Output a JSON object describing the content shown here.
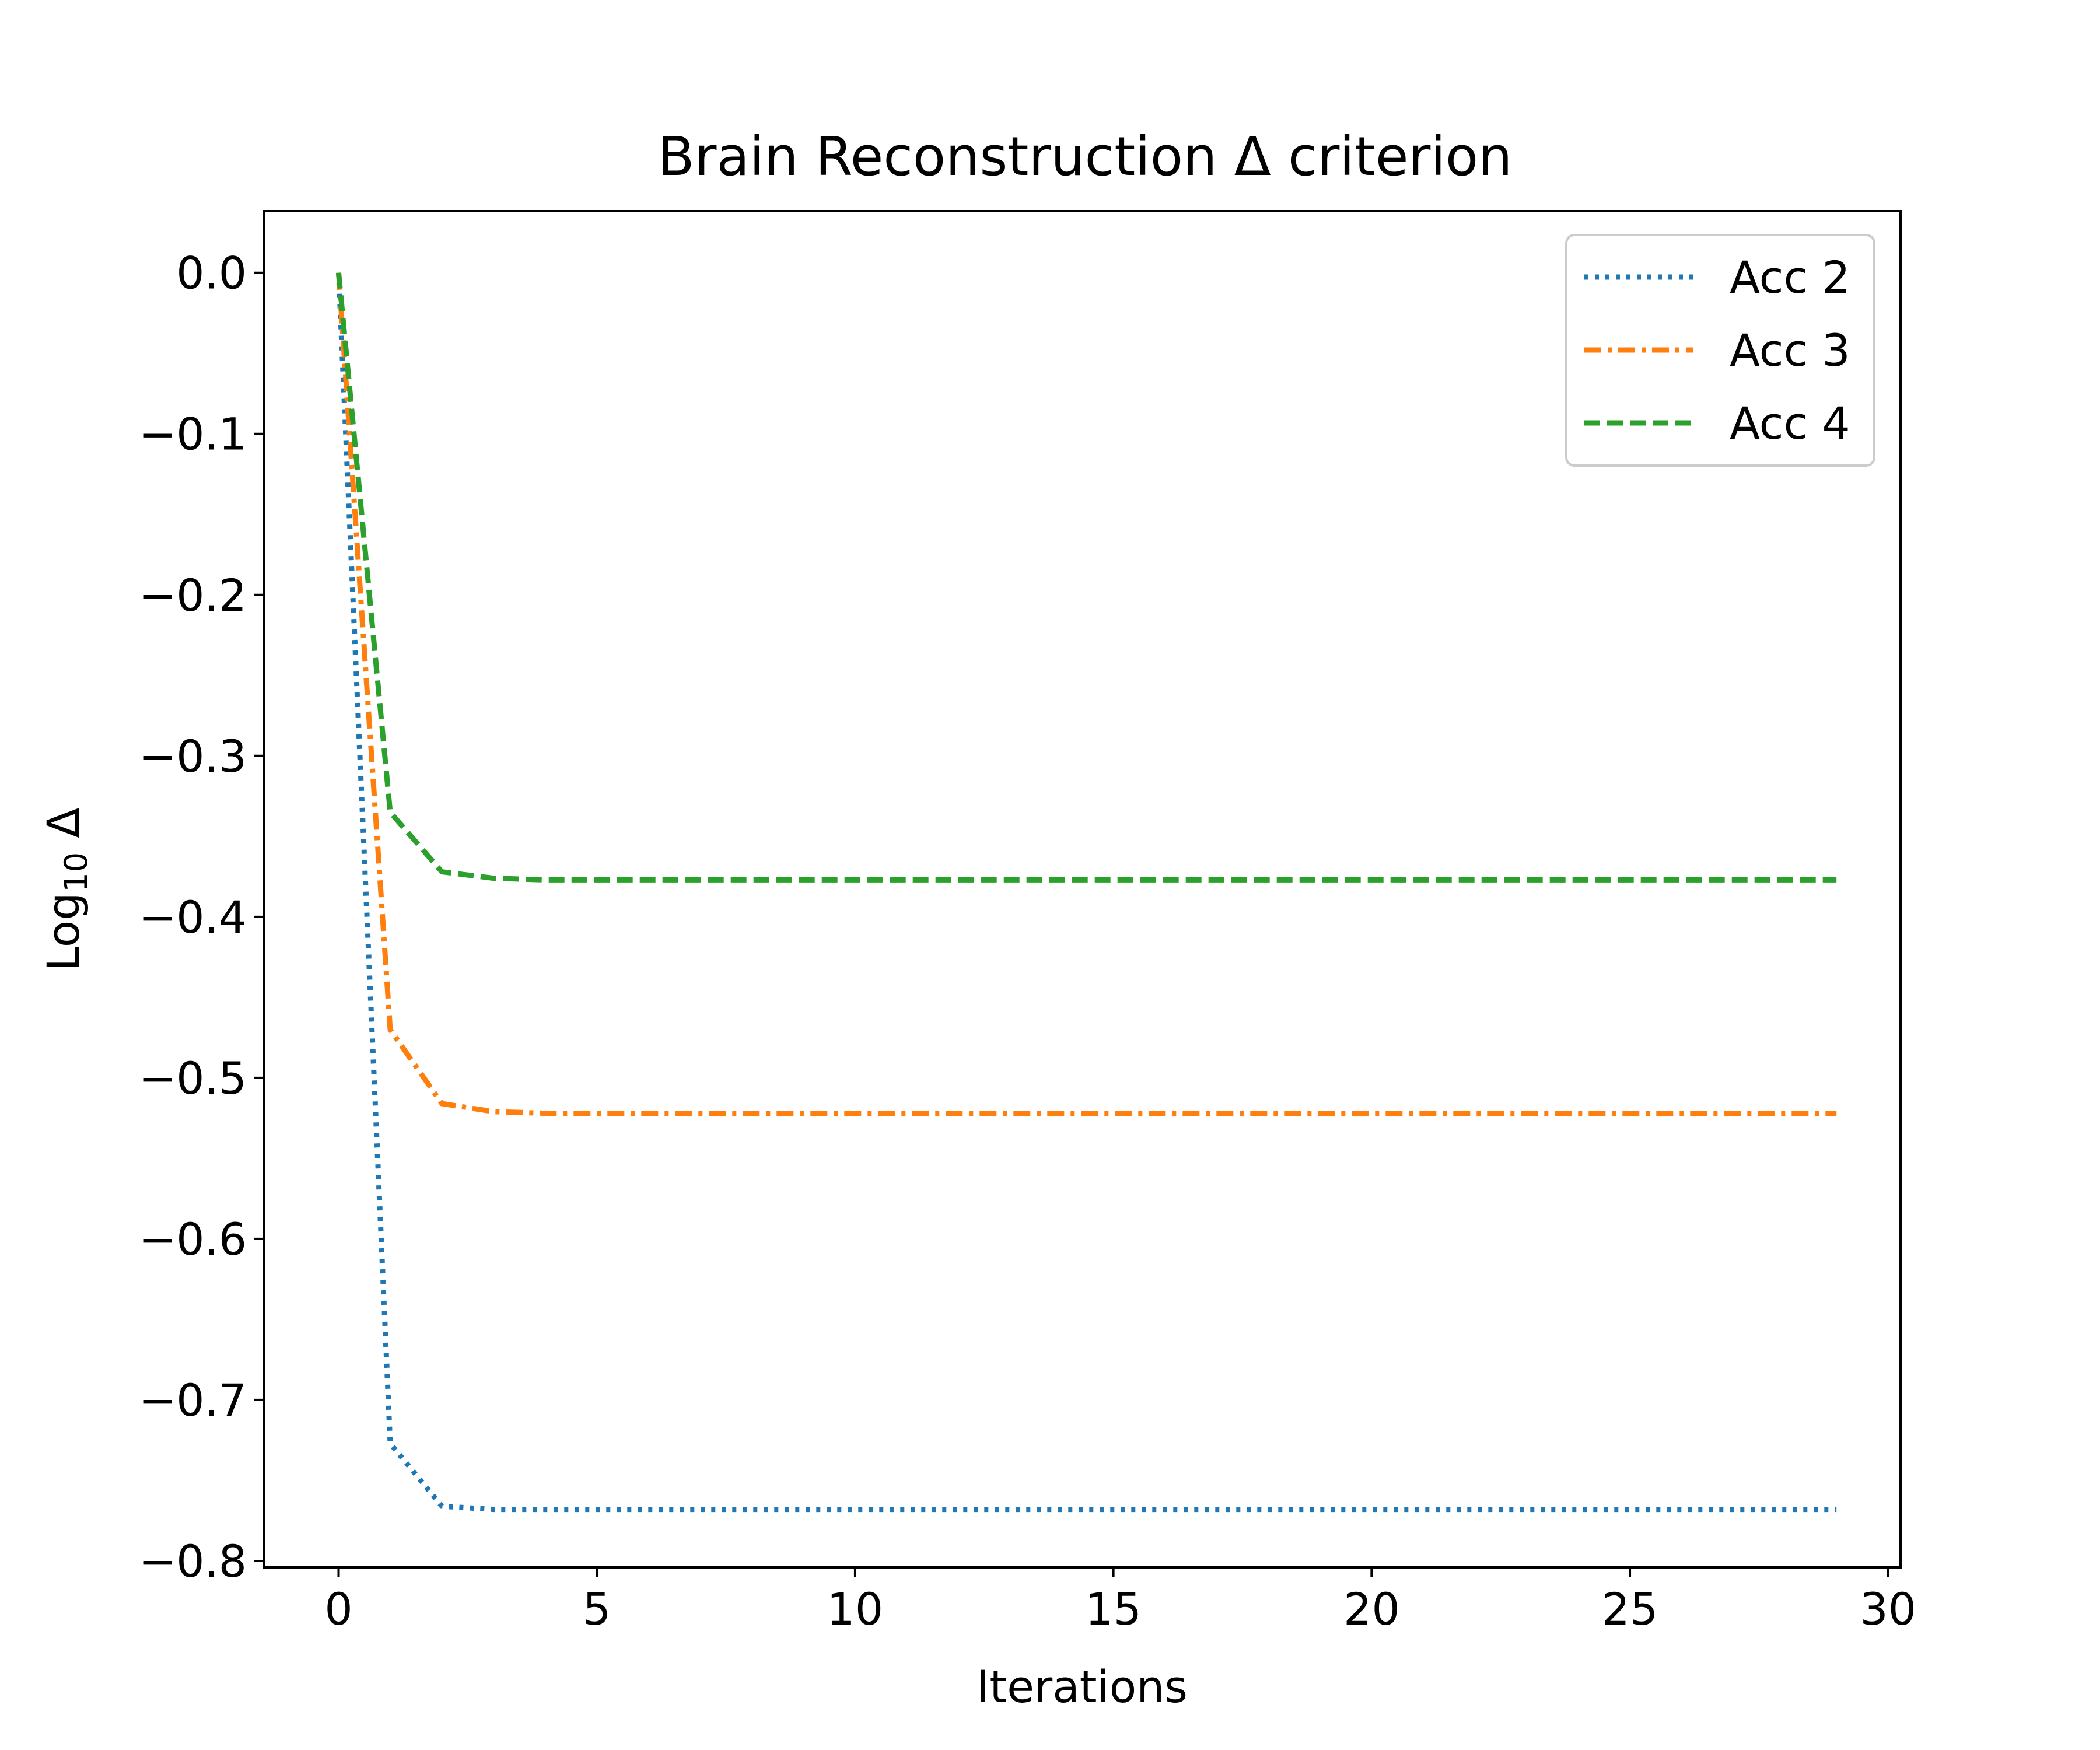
{
  "chart_data": {
    "type": "line",
    "title": "Brain Reconstruction Δ criterion",
    "xlabel": "Iterations",
    "ylabel": "Log",
    "ylabel_sub": "10",
    "ylabel_suffix": " Δ",
    "xlim": [
      -1.44,
      30.24
    ],
    "ylim": [
      -0.804,
      0.0383
    ],
    "xticks": [
      0,
      5,
      10,
      15,
      20,
      25,
      30
    ],
    "xtick_labels": [
      "0",
      "5",
      "10",
      "15",
      "20",
      "25",
      "30"
    ],
    "yticks": [
      0.0,
      -0.1,
      -0.2,
      -0.3,
      -0.4,
      -0.5,
      -0.6,
      -0.7,
      -0.8
    ],
    "ytick_labels": [
      "0.0",
      "−0.1",
      "−0.2",
      "−0.3",
      "−0.4",
      "−0.5",
      "−0.6",
      "−0.7",
      "−0.8"
    ],
    "grid": false,
    "legend_position": "top-right",
    "series": [
      {
        "name": "Acc 2",
        "color": "#1f77b4",
        "linestyle": "dotted",
        "x": [
          0,
          1,
          2,
          3,
          4,
          5,
          6,
          7,
          8,
          9,
          10,
          11,
          12,
          13,
          14,
          15,
          16,
          17,
          18,
          19,
          20,
          21,
          22,
          23,
          24,
          25,
          26,
          27,
          28,
          29
        ],
        "values": [
          0.0,
          -0.727,
          -0.766,
          -0.768,
          -0.768,
          -0.768,
          -0.768,
          -0.768,
          -0.768,
          -0.768,
          -0.768,
          -0.768,
          -0.768,
          -0.768,
          -0.768,
          -0.768,
          -0.768,
          -0.768,
          -0.768,
          -0.768,
          -0.768,
          -0.768,
          -0.768,
          -0.768,
          -0.768,
          -0.768,
          -0.768,
          -0.768,
          -0.768,
          -0.768
        ]
      },
      {
        "name": "Acc 3",
        "color": "#ff7f0e",
        "linestyle": "dashdot",
        "x": [
          0,
          1,
          2,
          3,
          4,
          5,
          6,
          7,
          8,
          9,
          10,
          11,
          12,
          13,
          14,
          15,
          16,
          17,
          18,
          19,
          20,
          21,
          22,
          23,
          24,
          25,
          26,
          27,
          28,
          29
        ],
        "values": [
          0.0,
          -0.47,
          -0.516,
          -0.521,
          -0.522,
          -0.522,
          -0.522,
          -0.522,
          -0.522,
          -0.522,
          -0.522,
          -0.522,
          -0.522,
          -0.522,
          -0.522,
          -0.522,
          -0.522,
          -0.522,
          -0.522,
          -0.522,
          -0.522,
          -0.522,
          -0.522,
          -0.522,
          -0.522,
          -0.522,
          -0.522,
          -0.522,
          -0.522,
          -0.522
        ]
      },
      {
        "name": "Acc 4",
        "color": "#2ca02c",
        "linestyle": "dashed",
        "x": [
          0,
          1,
          2,
          3,
          4,
          5,
          6,
          7,
          8,
          9,
          10,
          11,
          12,
          13,
          14,
          15,
          16,
          17,
          18,
          19,
          20,
          21,
          22,
          23,
          24,
          25,
          26,
          27,
          28,
          29
        ],
        "values": [
          0.0,
          -0.335,
          -0.372,
          -0.376,
          -0.377,
          -0.377,
          -0.377,
          -0.377,
          -0.377,
          -0.377,
          -0.377,
          -0.377,
          -0.377,
          -0.377,
          -0.377,
          -0.377,
          -0.377,
          -0.377,
          -0.377,
          -0.377,
          -0.377,
          -0.377,
          -0.377,
          -0.377,
          -0.377,
          -0.377,
          -0.377,
          -0.377,
          -0.377,
          -0.377
        ]
      }
    ]
  }
}
